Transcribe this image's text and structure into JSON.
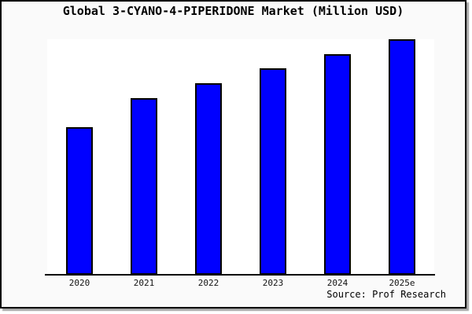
{
  "frame": {
    "background": "#fafafa",
    "border_color": "#000000",
    "shadow_color": "#a6a6a6"
  },
  "chart_data": {
    "type": "bar",
    "title": "Global 3-CYANO-4-PIPERIDONE Market (Million USD)",
    "categories": [
      "2020",
      "2021",
      "2022",
      "2023",
      "2024",
      "2025e"
    ],
    "values": [
      62.7,
      75.0,
      81.3,
      87.7,
      93.8,
      100.0
    ],
    "value_note": "No y-axis ticks or data labels are shown in the chart; values are relative bar heights normalized so 2025e = 100",
    "xlabel": "",
    "ylabel": "",
    "ylim": [
      0,
      100
    ],
    "grid": false,
    "legend": "none",
    "bar_color": "#0000ff",
    "bar_border_color": "#000000",
    "plot_background": "#ffffff",
    "source": "Source: Prof Research"
  }
}
